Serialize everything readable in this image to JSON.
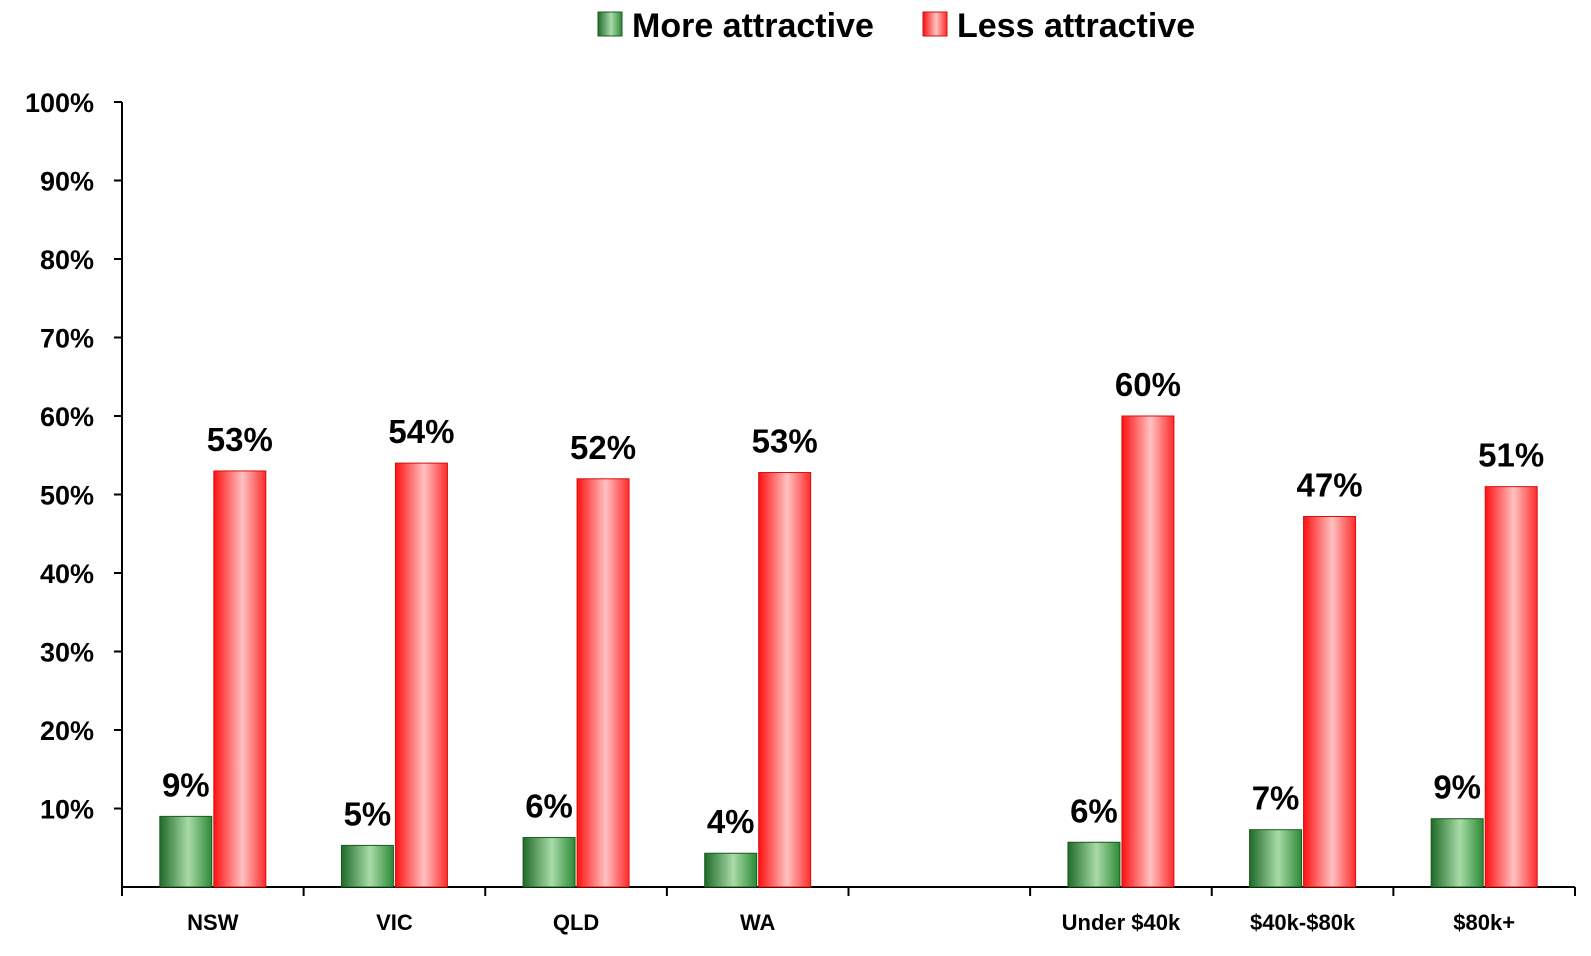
{
  "chart_data": {
    "type": "bar",
    "title": "",
    "xlabel": "",
    "ylabel": "",
    "ylim": [
      0,
      100
    ],
    "yticks": [
      "10%",
      "20%",
      "30%",
      "40%",
      "50%",
      "60%",
      "70%",
      "80%",
      "90%",
      "100%"
    ],
    "categories": [
      "NSW",
      "VIC",
      "QLD",
      "WA",
      "",
      "Under $40k",
      "$40k-$80k",
      "$80k+"
    ],
    "series": [
      {
        "name": "More attractive",
        "color": "#2e8b3a",
        "values": [
          9,
          5.3,
          6.3,
          4.3,
          null,
          5.7,
          7.3,
          8.7
        ],
        "labels": [
          "9%",
          "5%",
          "6%",
          "4%",
          "",
          "6%",
          "7%",
          "9%"
        ]
      },
      {
        "name": "Less attractive",
        "color": "#ff2a2a",
        "values": [
          53,
          54,
          52,
          52.8,
          null,
          60,
          47.2,
          51
        ],
        "labels": [
          "53%",
          "54%",
          "52%",
          "53%",
          "",
          "60%",
          "47%",
          "51%"
        ]
      }
    ],
    "legend_position": "top-center",
    "grid": false
  }
}
